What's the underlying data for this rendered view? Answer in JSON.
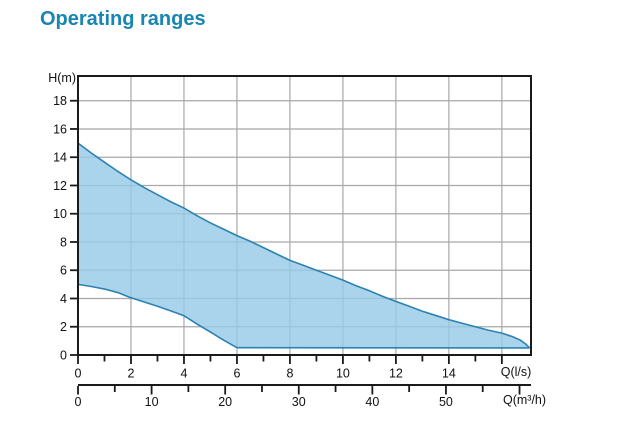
{
  "page": {
    "title": "Operating ranges",
    "title_color": "#1786B2",
    "background_color": "#FFFFFF"
  },
  "chart_data": {
    "type": "area",
    "title": "Operating ranges",
    "description": "Pump operating range envelope: shaded band between maximum and minimum head curves",
    "y_axis": {
      "label": "H(m)",
      "min": 0,
      "max_visible": 19.75,
      "major_ticks": [
        0,
        2,
        4,
        6,
        8,
        10,
        12,
        14,
        16,
        18
      ]
    },
    "x_axis_primary": {
      "label": "Q(l/s)",
      "min": 0,
      "max_visible": 17.1,
      "major_ticks": [
        0,
        2,
        4,
        6,
        8,
        10,
        12,
        14,
        16
      ],
      "labeled_ticks": [
        0,
        2,
        4,
        6,
        8,
        10,
        12,
        14
      ],
      "minor_ticks": [
        1,
        3,
        5,
        7,
        9,
        11,
        13,
        15
      ]
    },
    "x_axis_secondary": {
      "label": "Q(m³/h)",
      "units_per_primary": 3.6,
      "major_ticks": [
        0,
        10,
        20,
        30,
        40,
        50,
        60
      ],
      "labeled_ticks": [
        0,
        10,
        20,
        30,
        40,
        50
      ],
      "minor_ticks": [
        5,
        15,
        25,
        35,
        45,
        55
      ]
    },
    "grid": {
      "x_ticks": [
        2,
        4,
        6,
        8,
        10,
        12,
        14,
        16
      ],
      "y_ticks": [
        2,
        4,
        6,
        8,
        10,
        12,
        14,
        16,
        18
      ],
      "color": "#A8A8A8"
    },
    "axis_color": "#1A1A1A",
    "region": {
      "fill_color": "#96CBE7",
      "fill_opacity": 0.82,
      "line_color": "#2C82B2",
      "upper_boundary": [
        [
          0,
          15
        ],
        [
          0.5,
          14.3
        ],
        [
          1,
          13.65
        ],
        [
          1.5,
          13.0
        ],
        [
          2,
          12.4
        ],
        [
          2.5,
          11.85
        ],
        [
          3,
          11.35
        ],
        [
          3.5,
          10.85
        ],
        [
          4,
          10.4
        ],
        [
          4.5,
          9.85
        ],
        [
          5,
          9.35
        ],
        [
          5.5,
          8.9
        ],
        [
          6,
          8.45
        ],
        [
          6.5,
          8.05
        ],
        [
          7,
          7.6
        ],
        [
          7.5,
          7.15
        ],
        [
          8,
          6.7
        ],
        [
          8.5,
          6.35
        ],
        [
          9,
          6.0
        ],
        [
          9.5,
          5.65
        ],
        [
          10,
          5.3
        ],
        [
          10.5,
          4.9
        ],
        [
          11,
          4.55
        ],
        [
          11.5,
          4.15
        ],
        [
          12,
          3.8
        ],
        [
          12.5,
          3.45
        ],
        [
          13,
          3.1
        ],
        [
          13.5,
          2.8
        ],
        [
          14,
          2.5
        ],
        [
          14.5,
          2.25
        ],
        [
          15,
          2.0
        ],
        [
          15.5,
          1.75
        ],
        [
          16,
          1.55
        ],
        [
          16.4,
          1.3
        ],
        [
          16.7,
          1.05
        ],
        [
          16.9,
          0.78
        ],
        [
          17.05,
          0.5
        ]
      ],
      "lower_boundary": [
        [
          0,
          5
        ],
        [
          0.5,
          4.85
        ],
        [
          1,
          4.67
        ],
        [
          1.5,
          4.42
        ],
        [
          2,
          4.05
        ],
        [
          2.5,
          3.75
        ],
        [
          3,
          3.45
        ],
        [
          3.5,
          3.12
        ],
        [
          4,
          2.78
        ],
        [
          4.5,
          2.18
        ],
        [
          5,
          1.62
        ],
        [
          5.5,
          1.05
        ],
        [
          6,
          0.52
        ],
        [
          17.05,
          0.5
        ]
      ]
    }
  }
}
